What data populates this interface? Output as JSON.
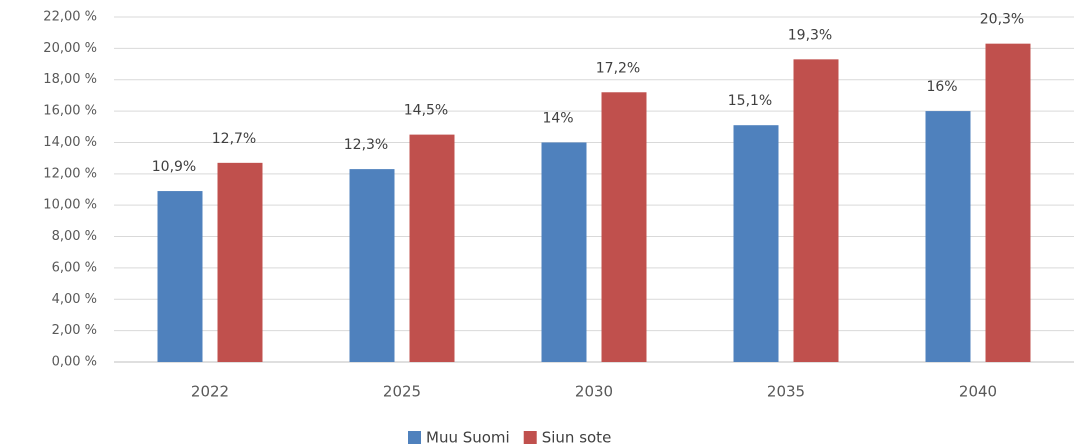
{
  "chart_data": {
    "type": "bar",
    "categories": [
      "2022",
      "2025",
      "2030",
      "2035",
      "2040"
    ],
    "series": [
      {
        "name": "Muu Suomi",
        "color": "#4f81bd",
        "values": [
          10.9,
          12.3,
          14,
          15.1,
          16
        ],
        "value_labels": [
          "10,9%",
          "12,3%",
          "14%",
          "15,1%",
          "16%"
        ]
      },
      {
        "name": "Siun sote",
        "color": "#c0504d",
        "values": [
          12.7,
          14.5,
          17.2,
          19.3,
          20.3
        ],
        "value_labels": [
          "12,7%",
          "14,5%",
          "17,2%",
          "19,3%",
          "20,3%"
        ]
      }
    ],
    "ylim": [
      0,
      22
    ],
    "yticks": [
      {
        "value": 0,
        "label": "0,00 %"
      },
      {
        "value": 2,
        "label": "2,00 %"
      },
      {
        "value": 4,
        "label": "4,00 %"
      },
      {
        "value": 6,
        "label": "6,00 %"
      },
      {
        "value": 8,
        "label": "8,00 %"
      },
      {
        "value": 10,
        "label": "10,00 %"
      },
      {
        "value": 12,
        "label": "12,00 %"
      },
      {
        "value": 14,
        "label": "14,00 %"
      },
      {
        "value": 16,
        "label": "16,00 %"
      },
      {
        "value": 18,
        "label": "18,00 %"
      },
      {
        "value": 20,
        "label": "20,00 %"
      },
      {
        "value": 22,
        "label": "22,00 %"
      }
    ],
    "grid": true,
    "legend": "bottom"
  }
}
